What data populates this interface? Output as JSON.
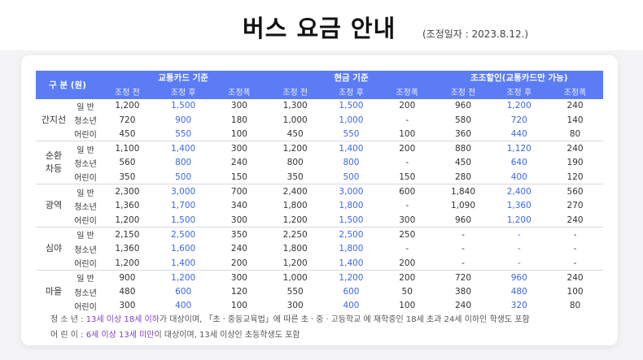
{
  "header": {
    "title": "버스 요금 안내",
    "date_label": "(조정일자 : 2023.8.12.)"
  },
  "table": {
    "corner": "구 분 (원)",
    "groups": [
      "교통카드 기준",
      "현금 기준",
      "조조할인(교통카드만 가능)"
    ],
    "subcols": [
      "조정 전",
      "조정 후",
      "조정폭",
      "조정 전",
      "조정 후",
      "조정폭",
      "조정 전",
      "조정 후",
      "조정폭"
    ],
    "categories": [
      {
        "name": "간지선",
        "rows": [
          {
            "label": "일 반",
            "values": [
              "1,200",
              "1,500",
              "300",
              "1,300",
              "1,500",
              "200",
              "960",
              "1,200",
              "240"
            ]
          },
          {
            "label": "청소년",
            "values": [
              "720",
              "900",
              "180",
              "1,000",
              "1,000",
              "-",
              "580",
              "720",
              "140"
            ]
          },
          {
            "label": "어린이",
            "values": [
              "450",
              "550",
              "100",
              "450",
              "550",
              "100",
              "360",
              "440",
              "80"
            ]
          }
        ]
      },
      {
        "name": "순환\n차등",
        "rows": [
          {
            "label": "일 반",
            "values": [
              "1,100",
              "1,400",
              "300",
              "1,200",
              "1,400",
              "200",
              "880",
              "1,120",
              "240"
            ]
          },
          {
            "label": "청소년",
            "values": [
              "560",
              "800",
              "240",
              "800",
              "800",
              "-",
              "450",
              "640",
              "190"
            ]
          },
          {
            "label": "어린이",
            "values": [
              "350",
              "500",
              "150",
              "350",
              "500",
              "150",
              "280",
              "400",
              "120"
            ]
          }
        ]
      },
      {
        "name": "광역",
        "rows": [
          {
            "label": "일 반",
            "values": [
              "2,300",
              "3,000",
              "700",
              "2,400",
              "3,000",
              "600",
              "1,840",
              "2,400",
              "560"
            ]
          },
          {
            "label": "청소년",
            "values": [
              "1,360",
              "1,700",
              "340",
              "1,800",
              "1,800",
              "-",
              "1,090",
              "1,360",
              "270"
            ]
          },
          {
            "label": "어린이",
            "values": [
              "1,200",
              "1,500",
              "300",
              "1,200",
              "1,500",
              "300",
              "960",
              "1,200",
              "240"
            ]
          }
        ]
      },
      {
        "name": "심야",
        "rows": [
          {
            "label": "일 반",
            "values": [
              "2,150",
              "2,500",
              "350",
              "2,250",
              "2,500",
              "250",
              "-",
              "-",
              "-"
            ]
          },
          {
            "label": "청소년",
            "values": [
              "1,360",
              "1,600",
              "240",
              "1,800",
              "1,800",
              "-",
              "-",
              "-",
              "-"
            ]
          },
          {
            "label": "어린이",
            "values": [
              "1,200",
              "1,400",
              "200",
              "1,200",
              "1,400",
              "200",
              "-",
              "-",
              "-"
            ]
          }
        ]
      },
      {
        "name": "마을",
        "rows": [
          {
            "label": "일 반",
            "values": [
              "900",
              "1,200",
              "300",
              "1,000",
              "1,200",
              "200",
              "720",
              "960",
              "240"
            ]
          },
          {
            "label": "청소년",
            "values": [
              "480",
              "600",
              "120",
              "550",
              "600",
              "50",
              "380",
              "480",
              "100"
            ]
          },
          {
            "label": "어린이",
            "values": [
              "300",
              "400",
              "100",
              "300",
              "400",
              "100",
              "240",
              "320",
              "80"
            ]
          }
        ]
      }
    ]
  },
  "notes": {
    "teen_label": "청 소 년 : ",
    "teen_highlight": "13세 이상 18세 이하",
    "teen_rest": "가 대상이며, 「초ㆍ중등교육법」에 따른 초ㆍ중ㆍ고등학교 에 재학중인 18세 초과 24세 이하인 학생도 포함",
    "child_label": "어 린 이 : ",
    "child_highlight": "6세 이상 13세 미만",
    "child_rest": "이 대상이며,  13세 이상인 초등학생도 포함"
  },
  "colors": {
    "header_bg": "#5b7cf5",
    "adjusted_value": "#3d66e8",
    "note_highlight": "#7a3fbf"
  }
}
